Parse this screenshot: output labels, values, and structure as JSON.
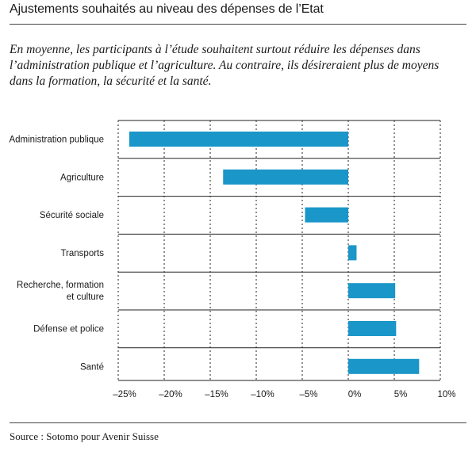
{
  "title": "Ajustements souhaités au niveau des dépenses de l’Etat",
  "subtitle": "En moyenne, les participants à l’étude souhaitent surtout réduire les dépenses dans l’administration publique et l’agriculture. Au contraire, ils désireraient plus de moyens dans la formation, la sécurité et la santé.",
  "source": "Source : Sotomo pour Avenir Suisse",
  "colors": {
    "bar": "#1a96c8",
    "grid": "#222222",
    "text": "#1a1a1a"
  },
  "chart_data": {
    "type": "bar",
    "orientation": "horizontal",
    "categories": [
      "Administration publique",
      "Agriculture",
      "Sécurité sociale",
      "Transports",
      "Recherche, formation et culture",
      "Défense et police",
      "Santé"
    ],
    "category_lines": [
      [
        "Administration publique"
      ],
      [
        "Agriculture"
      ],
      [
        "Sécurité sociale"
      ],
      [
        "Transports"
      ],
      [
        "Recherche, formation",
        "et culture"
      ],
      [
        "Défense et police"
      ],
      [
        "Santé"
      ]
    ],
    "values": [
      -23.8,
      -13.6,
      -4.7,
      0.9,
      5.1,
      5.2,
      7.7
    ],
    "unit": "%",
    "xlim": [
      -25,
      10
    ],
    "x_ticks": [
      -25,
      -20,
      -15,
      -10,
      -5,
      0,
      5,
      10
    ],
    "x_tick_labels": [
      "–25%",
      "–20%",
      "–15%",
      "–10%",
      "–5%",
      "0%",
      "5%",
      "10%"
    ],
    "grid": "vertical dashed",
    "legend": "none"
  }
}
